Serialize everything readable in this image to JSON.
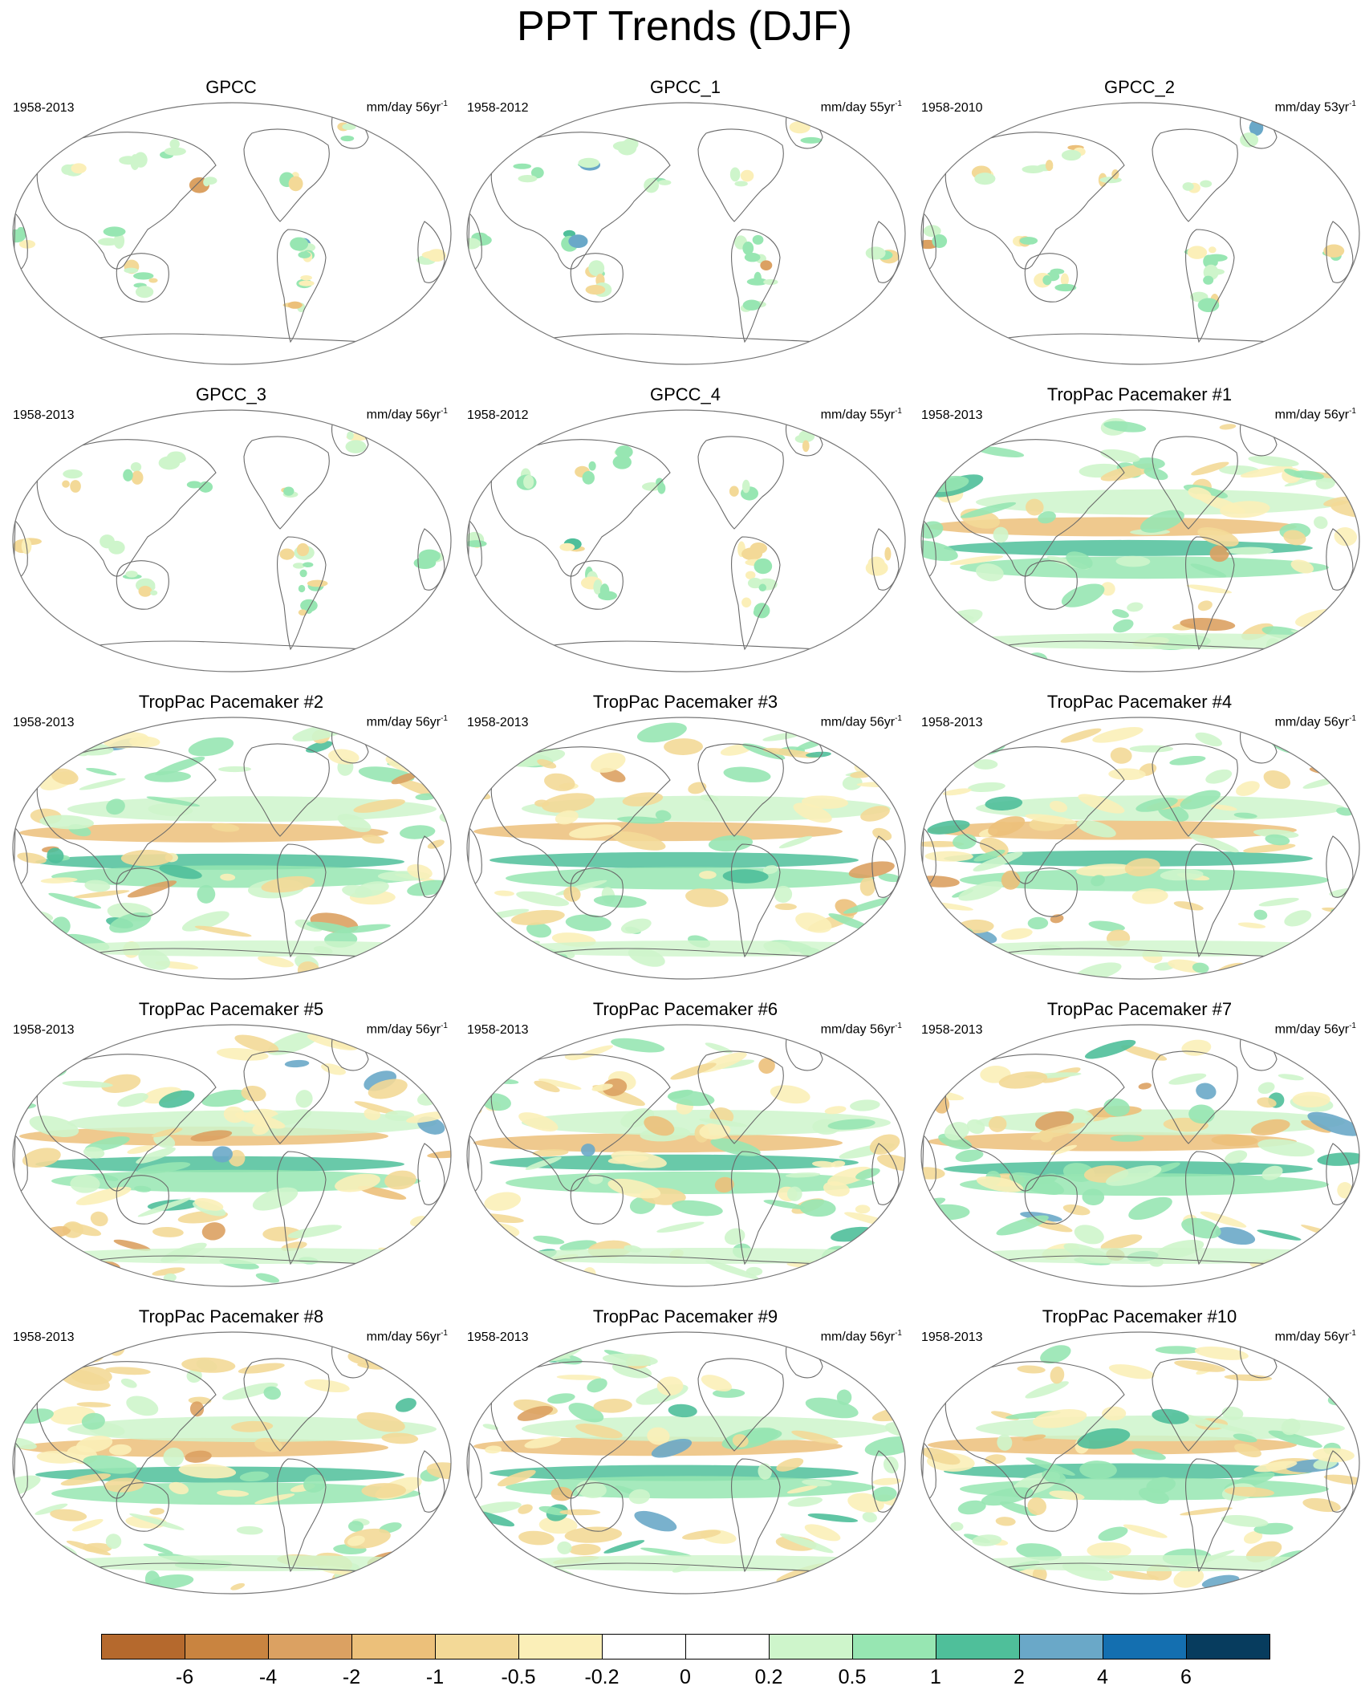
{
  "title": "PPT Trends (DJF)",
  "unit_label": "mm/day",
  "panels": [
    {
      "name": "GPCC",
      "period": "1958-2013",
      "years": "56yr",
      "exp": "-1",
      "kind": "obs"
    },
    {
      "name": "GPCC_1",
      "period": "1958-2012",
      "years": "55yr",
      "exp": "-1",
      "kind": "obs"
    },
    {
      "name": "GPCC_2",
      "period": "1958-2010",
      "years": "53yr",
      "exp": "-1",
      "kind": "obs"
    },
    {
      "name": "GPCC_3",
      "period": "1958-2013",
      "years": "56yr",
      "exp": "-1",
      "kind": "obs"
    },
    {
      "name": "GPCC_4",
      "period": "1958-2012",
      "years": "55yr",
      "exp": "-1",
      "kind": "obs"
    },
    {
      "name": "TropPac Pacemaker #1",
      "period": "1958-2013",
      "years": "56yr",
      "exp": "-1",
      "kind": "model"
    },
    {
      "name": "TropPac Pacemaker #2",
      "period": "1958-2013",
      "years": "56yr",
      "exp": "-1",
      "kind": "model"
    },
    {
      "name": "TropPac Pacemaker #3",
      "period": "1958-2013",
      "years": "56yr",
      "exp": "-1",
      "kind": "model"
    },
    {
      "name": "TropPac Pacemaker #4",
      "period": "1958-2013",
      "years": "56yr",
      "exp": "-1",
      "kind": "model"
    },
    {
      "name": "TropPac Pacemaker #5",
      "period": "1958-2013",
      "years": "56yr",
      "exp": "-1",
      "kind": "model"
    },
    {
      "name": "TropPac Pacemaker #6",
      "period": "1958-2013",
      "years": "56yr",
      "exp": "-1",
      "kind": "model"
    },
    {
      "name": "TropPac Pacemaker #7",
      "period": "1958-2013",
      "years": "56yr",
      "exp": "-1",
      "kind": "model"
    },
    {
      "name": "TropPac Pacemaker #8",
      "period": "1958-2013",
      "years": "56yr",
      "exp": "-1",
      "kind": "model"
    },
    {
      "name": "TropPac Pacemaker #9",
      "period": "1958-2013",
      "years": "56yr",
      "exp": "-1",
      "kind": "model"
    },
    {
      "name": "TropPac Pacemaker #10",
      "period": "1958-2013",
      "years": "56yr",
      "exp": "-1",
      "kind": "model"
    }
  ],
  "colorbar": {
    "colors": [
      "#b5692d",
      "#c98440",
      "#dba162",
      "#ecc07a",
      "#f3d997",
      "#fbefb8",
      "#ffffff",
      "#ffffff",
      "#cef5cb",
      "#97e6b2",
      "#4fbf9a",
      "#6aa8c8",
      "#146fb0",
      "#073c5e"
    ],
    "labels": [
      "-6",
      "-4",
      "-2",
      "-1",
      "-0.5",
      "-0.2",
      "0",
      "0.2",
      "0.5",
      "1",
      "2",
      "4",
      "6"
    ]
  }
}
